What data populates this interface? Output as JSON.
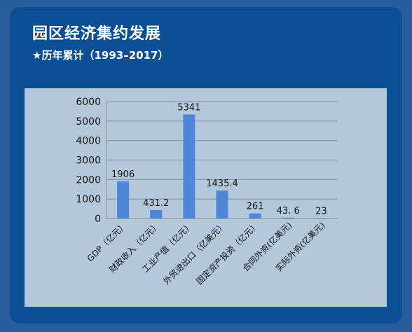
{
  "header": {
    "title": "园区经济集约发展",
    "subtitle": "★历年累计（1993–2017）"
  },
  "chart_data": {
    "type": "bar",
    "categories": [
      "GDP（亿元）",
      "财政收入（亿元）",
      "工业产值（亿元）",
      "外贸进出口（亿美元）",
      "固定资产投资（亿元）",
      "合同外资(亿美元)",
      "实际外资(亿美元)"
    ],
    "values": [
      1906,
      431.2,
      5341,
      1435.4,
      261,
      43.6,
      23
    ],
    "data_labels": [
      "1906",
      "431.2",
      "5341",
      "1435.4",
      "261",
      "43. 6",
      "23"
    ],
    "yticks": [
      "0",
      "1000",
      "2000",
      "3000",
      "4000",
      "5000",
      "6000"
    ],
    "ylim": [
      0,
      6000
    ],
    "grid": true,
    "bar_color": "#4f86d8"
  }
}
